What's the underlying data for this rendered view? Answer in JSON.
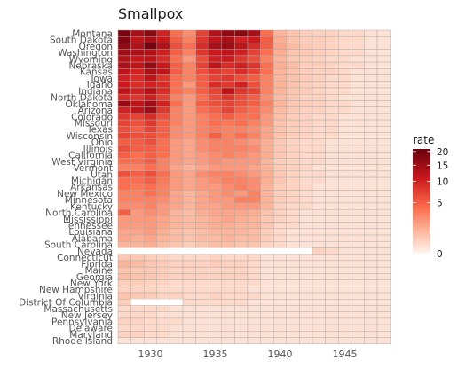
{
  "chart_data": {
    "type": "heatmap",
    "title": "Smallpox",
    "xlabel": "",
    "ylabel": "",
    "states": [
      "Montana",
      "South Dakota",
      "Oregon",
      "Washington",
      "Wyoming",
      "Nebraska",
      "Kansas",
      "Iowa",
      "Idaho",
      "Indiana",
      "North Dakota",
      "Oklahoma",
      "Arizona",
      "Colorado",
      "Missouri",
      "Texas",
      "Wisconsin",
      "Ohio",
      "Illinois",
      "California",
      "West Virginia",
      "Vermont",
      "Utah",
      "Michigan",
      "Arkansas",
      "New Mexico",
      "Minnesota",
      "Kentucky",
      "North Carolina",
      "Mississippi",
      "Tennessee",
      "Louisiana",
      "Alabama",
      "South Carolina",
      "Nevada",
      "Connecticut",
      "Florida",
      "Maine",
      "Georgia",
      "New York",
      "New Hampshire",
      "Virginia",
      "District Of Columbia",
      "Massachusetts",
      "New Jersey",
      "Pennsylvania",
      "Delaware",
      "Maryland",
      "Rhode Island"
    ],
    "years": [
      1928,
      1929,
      1930,
      1931,
      1932,
      1933,
      1934,
      1935,
      1936,
      1937,
      1938,
      1939,
      1940,
      1941,
      1942,
      1943,
      1944,
      1945,
      1946,
      1947,
      1948
    ],
    "x_ticks": [
      1930,
      1935,
      1940,
      1945
    ],
    "legend": {
      "title": "rate",
      "ticks": [
        0,
        5,
        10,
        15,
        20
      ],
      "position": "right",
      "max": 21
    },
    "colors": {
      "low": "#fff5f0",
      "mid1": "#fcbba1",
      "mid2": "#fb6a4a",
      "mid3": "#cb181d",
      "high": "#67000d",
      "grid": "#aaaaaa"
    },
    "rates": [
      [
        19,
        14,
        17,
        10,
        4,
        2.5,
        7,
        13,
        16,
        17,
        14,
        4,
        1,
        0.6,
        0.4,
        0.3,
        0.3,
        0.2,
        0.2,
        0.1,
        0.1
      ],
      [
        18,
        12,
        14,
        11,
        5,
        3,
        8,
        12,
        14,
        10,
        11,
        5,
        1.2,
        0.6,
        0.4,
        0.4,
        0.3,
        0.2,
        0.2,
        0.1,
        0.1
      ],
      [
        16,
        13,
        19,
        13,
        6,
        4,
        9,
        14,
        15,
        12,
        9,
        5,
        1.5,
        0.8,
        0.5,
        0.4,
        0.3,
        0.2,
        0.2,
        0.1,
        0.1
      ],
      [
        15,
        14,
        13,
        10,
        5,
        3,
        8,
        11,
        12,
        10,
        7,
        4,
        1.2,
        0.6,
        0.5,
        0.4,
        0.3,
        0.2,
        0.2,
        0.1,
        0.1
      ],
      [
        13,
        11,
        12,
        9,
        4,
        2,
        6,
        10,
        11,
        8,
        6,
        3,
        1,
        0.5,
        0.4,
        0.3,
        0.2,
        0.2,
        0.1,
        0.1,
        0.1
      ],
      [
        14,
        12,
        16,
        11,
        5,
        3,
        7,
        12,
        9,
        10,
        8,
        4,
        1.2,
        0.7,
        0.4,
        0.4,
        0.3,
        0.2,
        0.2,
        0.1,
        0.1
      ],
      [
        12,
        10,
        14,
        12,
        5,
        3,
        6,
        8,
        7,
        9,
        7,
        4,
        1,
        0.6,
        0.4,
        0.3,
        0.3,
        0.2,
        0.1,
        0.1,
        0.1
      ],
      [
        10,
        9,
        12,
        8,
        4,
        3,
        5,
        7,
        8,
        6,
        5,
        3,
        1,
        0.6,
        0.4,
        0.3,
        0.2,
        0.2,
        0.1,
        0.1,
        0.1
      ],
      [
        11,
        9,
        10,
        9,
        4,
        2,
        5,
        9,
        8,
        10,
        6,
        3,
        1.1,
        0.6,
        0.4,
        0.3,
        0.2,
        0.2,
        0.1,
        0.1,
        0.1
      ],
      [
        12,
        10,
        13,
        9,
        4,
        3,
        5,
        7,
        12,
        8,
        7,
        3,
        1,
        0.5,
        0.4,
        0.3,
        0.2,
        0.2,
        0.1,
        0.1,
        0.1
      ],
      [
        9,
        8,
        10,
        7,
        3,
        2,
        4,
        6,
        8,
        6,
        5,
        2.5,
        0.8,
        0.5,
        0.3,
        0.3,
        0.2,
        0.1,
        0.1,
        0.1,
        0.1
      ],
      [
        16,
        12,
        15,
        10,
        4,
        2,
        5,
        6,
        7,
        6,
        5,
        3,
        1,
        0.5,
        0.4,
        0.3,
        0.2,
        0.2,
        0.1,
        0.1,
        0.1
      ],
      [
        10,
        12,
        15,
        8,
        3,
        2,
        4,
        5,
        7,
        5,
        4,
        2.5,
        0.8,
        0.5,
        0.3,
        0.3,
        0.2,
        0.2,
        0.1,
        0.1,
        0.1
      ],
      [
        8,
        7,
        9,
        6,
        3,
        2,
        3,
        4,
        5,
        4,
        4,
        2,
        0.7,
        0.4,
        0.3,
        0.2,
        0.2,
        0.1,
        0.1,
        0.1,
        0.1
      ],
      [
        7,
        6,
        8,
        5,
        3,
        2,
        3,
        4,
        3.5,
        4,
        3,
        2,
        0.6,
        0.4,
        0.3,
        0.2,
        0.2,
        0.1,
        0.1,
        0.1,
        0.1
      ],
      [
        6,
        5,
        7,
        5,
        2.5,
        2,
        3,
        3.5,
        3,
        3,
        2.5,
        1.5,
        0.6,
        0.4,
        0.3,
        0.2,
        0.2,
        0.1,
        0.1,
        0.1,
        0.1
      ],
      [
        7,
        6,
        6,
        5,
        2.5,
        2,
        3,
        5,
        3,
        4,
        3,
        1.5,
        0.6,
        0.4,
        0.3,
        0.2,
        0.2,
        0.1,
        0.1,
        0.1,
        0.1
      ],
      [
        5,
        5,
        6,
        4,
        2,
        1.5,
        2.5,
        3,
        3,
        2.5,
        2,
        1.2,
        0.5,
        0.3,
        0.2,
        0.2,
        0.1,
        0.1,
        0.1,
        0.1,
        0.1
      ],
      [
        6,
        5,
        5,
        4,
        2,
        1.5,
        2.5,
        3,
        3,
        3,
        2.5,
        1.2,
        0.5,
        0.3,
        0.2,
        0.2,
        0.1,
        0.1,
        0.1,
        0.1,
        0.1
      ],
      [
        5,
        4,
        5,
        4,
        2,
        1.5,
        2,
        2.5,
        3,
        2.5,
        2,
        1.2,
        0.5,
        0.3,
        0.2,
        0.2,
        0.1,
        0.1,
        0.1,
        0.1,
        0.1
      ],
      [
        4,
        4,
        5,
        3,
        2,
        1.5,
        2,
        2.5,
        2,
        2,
        2,
        1,
        0.4,
        0.3,
        0.2,
        0.2,
        0.1,
        0.1,
        0.1,
        0.1,
        0.1
      ],
      [
        3,
        3,
        4,
        3,
        1.5,
        1,
        1.5,
        2,
        2,
        2,
        1.5,
        1,
        0.4,
        0.3,
        0.2,
        0.1,
        0.1,
        0.1,
        0.1,
        0.1,
        0.1
      ],
      [
        6,
        5,
        6,
        4,
        2,
        1.5,
        2.5,
        3,
        3,
        2.5,
        2,
        1.2,
        0.5,
        0.3,
        0.2,
        0.2,
        0.1,
        0.1,
        0.1,
        0.1,
        0.1
      ],
      [
        4,
        4,
        5,
        3.5,
        2,
        1.5,
        2,
        2.5,
        3,
        3,
        2.5,
        1.2,
        0.5,
        0.3,
        0.2,
        0.2,
        0.1,
        0.1,
        0.1,
        0.1,
        0.1
      ],
      [
        4,
        3.5,
        4,
        3,
        2,
        1.5,
        2,
        2,
        2.5,
        3,
        2.5,
        1,
        0.4,
        0.3,
        0.2,
        0.1,
        0.1,
        0.1,
        0.1,
        0.1,
        0.1
      ],
      [
        3,
        3,
        4,
        3,
        1.5,
        1,
        1.5,
        2,
        2.5,
        2,
        3,
        1,
        0.4,
        0.3,
        0.2,
        0.1,
        0.1,
        0.1,
        0.1,
        0.1,
        0.1
      ],
      [
        3,
        3,
        3,
        2.5,
        1.5,
        1,
        1.5,
        2,
        2,
        3,
        3,
        1,
        0.4,
        0.3,
        0.2,
        0.1,
        0.1,
        0.1,
        0.1,
        0.1,
        0.1
      ],
      [
        2.5,
        2.5,
        3,
        2,
        1.5,
        1,
        1.5,
        1.5,
        2,
        2,
        2,
        1,
        0.3,
        0.2,
        0.2,
        0.1,
        0.1,
        0.1,
        0.1,
        0.1,
        0.1
      ],
      [
        5,
        2,
        2.5,
        2,
        1,
        0.8,
        1.2,
        1.5,
        1.5,
        1.5,
        1.2,
        0.6,
        0.3,
        0.2,
        0.1,
        0.1,
        0.1,
        0.1,
        0.1,
        0.1,
        0.1
      ],
      [
        2,
        2,
        2,
        1.5,
        1,
        0.8,
        1,
        1.2,
        1.5,
        1.2,
        1,
        0.5,
        0.3,
        0.2,
        0.1,
        0.1,
        0.1,
        0.1,
        0.1,
        0.1,
        0.1
      ],
      [
        2,
        1.8,
        2,
        1.5,
        1,
        0.8,
        1,
        1.2,
        1.2,
        1,
        1,
        0.5,
        0.2,
        0.2,
        0.1,
        0.1,
        0.1,
        0.1,
        0.1,
        0.1,
        0.1
      ],
      [
        1.5,
        1.5,
        1.8,
        1.2,
        0.8,
        0.6,
        0.8,
        1,
        1,
        1,
        0.8,
        0.4,
        0.2,
        0.1,
        0.1,
        0.1,
        0.1,
        0.1,
        0.1,
        0.1,
        0.1
      ],
      [
        1.5,
        1.2,
        1.5,
        1,
        0.8,
        0.6,
        0.8,
        0.8,
        1,
        0.8,
        0.8,
        0.4,
        0.2,
        0.1,
        0.1,
        0.1,
        0.1,
        0.1,
        0.1,
        0.1,
        0.1
      ],
      [
        1,
        1,
        1.2,
        0.8,
        0.6,
        0.4,
        0.6,
        0.8,
        0.8,
        0.6,
        0.6,
        0.3,
        0.2,
        0.1,
        0.1,
        0.1,
        0.1,
        0.1,
        0.1,
        0.1,
        0.1
      ],
      [
        0,
        0,
        0,
        0,
        0,
        0,
        0,
        0,
        0,
        0,
        0,
        0,
        0,
        0,
        0,
        0.3,
        0.2,
        0.1,
        0.1,
        0.1,
        0.1
      ],
      [
        0.5,
        0.5,
        0.4,
        0.3,
        0.2,
        0.2,
        0.2,
        0.3,
        0.2,
        0.2,
        0.2,
        0.1,
        0.1,
        0.1,
        0.1,
        0.1,
        0.1,
        0.1,
        0.1,
        0.1,
        0.1
      ],
      [
        1,
        0.8,
        0.5,
        0.4,
        0.3,
        0.3,
        0.3,
        0.4,
        0.3,
        0.3,
        0.2,
        0.1,
        0.1,
        0.1,
        0.1,
        0.1,
        0.1,
        0.1,
        0.1,
        0.1,
        0.1
      ],
      [
        0.6,
        0.5,
        0.5,
        0.4,
        0.3,
        0.3,
        0.3,
        0.3,
        0.3,
        0.3,
        0.2,
        0.1,
        0.1,
        0.1,
        0.1,
        0.1,
        0.1,
        0.1,
        0.1,
        0.1,
        0.1
      ],
      [
        0.8,
        0.6,
        0.5,
        0.4,
        0.3,
        0.3,
        0.3,
        0.3,
        0.3,
        0.3,
        0.2,
        0.1,
        0.1,
        0.1,
        0.1,
        0.1,
        0.1,
        0.1,
        0.1,
        0.1,
        0.1
      ],
      [
        0.4,
        0.4,
        0.3,
        0.3,
        0.2,
        0.2,
        0.2,
        0.2,
        0.2,
        0.2,
        0.2,
        0.1,
        0.1,
        0.1,
        0.1,
        0.1,
        0.1,
        0.1,
        0.1,
        0.1,
        0.1
      ],
      [
        0.3,
        0.3,
        0.3,
        0.2,
        0.2,
        0.2,
        0.2,
        0.2,
        0.2,
        0.2,
        0.1,
        0.1,
        0.1,
        0.1,
        0.1,
        0.1,
        0.1,
        0.1,
        0.1,
        0.1,
        0.1
      ],
      [
        0.6,
        0.5,
        0.4,
        0.3,
        0.3,
        0.2,
        0.2,
        0.3,
        0.2,
        0.2,
        0.2,
        0.1,
        0.1,
        0.1,
        0.1,
        0.1,
        0.1,
        0.1,
        0.1,
        0.1,
        0.1
      ],
      [
        0.4,
        0,
        0,
        0,
        0,
        0.2,
        0.2,
        0.2,
        0.2,
        0.2,
        0.1,
        0.1,
        0.1,
        0.1,
        0.1,
        0.1,
        0.1,
        0.1,
        0.1,
        0.1,
        0.1
      ],
      [
        0.2,
        0.2,
        0.2,
        0.2,
        0.1,
        0.1,
        0.1,
        0.1,
        0.1,
        0.1,
        0.1,
        0.1,
        0.1,
        0.1,
        0.1,
        0.1,
        0.1,
        0.1,
        0.1,
        0.1,
        0.1
      ],
      [
        0.2,
        0.2,
        0.2,
        0.1,
        0.1,
        0.1,
        0.1,
        0.1,
        0.1,
        0.1,
        0.1,
        0.1,
        0.1,
        0.1,
        0.1,
        0.1,
        0.1,
        0.1,
        0.1,
        0.1,
        0.1
      ],
      [
        0.3,
        0.3,
        0.2,
        0.2,
        0.2,
        0.1,
        0.1,
        0.1,
        0.1,
        0.1,
        0.1,
        0.1,
        0.1,
        0.1,
        0.1,
        0.1,
        0.1,
        0.1,
        0.1,
        0.1,
        0.1
      ],
      [
        0.2,
        0.2,
        0.2,
        0.2,
        0.1,
        0.1,
        0.1,
        0.1,
        0.1,
        0.1,
        0.1,
        0.1,
        0.1,
        0.1,
        0.1,
        0.1,
        0.1,
        0.1,
        0.1,
        0.1,
        0.1
      ],
      [
        0.3,
        0.3,
        0.2,
        0.2,
        0.1,
        0.1,
        0.1,
        0.1,
        0.1,
        0.1,
        0.1,
        0.1,
        0.1,
        0.1,
        0.1,
        0.1,
        0.1,
        0.1,
        0.1,
        0.1,
        0.1
      ],
      [
        0.1,
        0.1,
        0.1,
        0.1,
        0.1,
        0.1,
        0.1,
        0.1,
        0.1,
        0.1,
        0.1,
        0.1,
        0.1,
        0.1,
        0.1,
        0.1,
        0.1,
        0.1,
        0.1,
        0.1,
        0.1
      ]
    ],
    "missing_cells": [
      [
        34,
        0
      ],
      [
        34,
        1
      ],
      [
        34,
        2
      ],
      [
        34,
        3
      ],
      [
        34,
        4
      ],
      [
        34,
        5
      ],
      [
        34,
        6
      ],
      [
        34,
        7
      ],
      [
        34,
        8
      ],
      [
        34,
        9
      ],
      [
        34,
        10
      ],
      [
        34,
        11
      ],
      [
        34,
        12
      ],
      [
        34,
        13
      ],
      [
        34,
        14
      ],
      [
        42,
        1
      ],
      [
        42,
        2
      ],
      [
        42,
        3
      ],
      [
        42,
        4
      ]
    ]
  }
}
